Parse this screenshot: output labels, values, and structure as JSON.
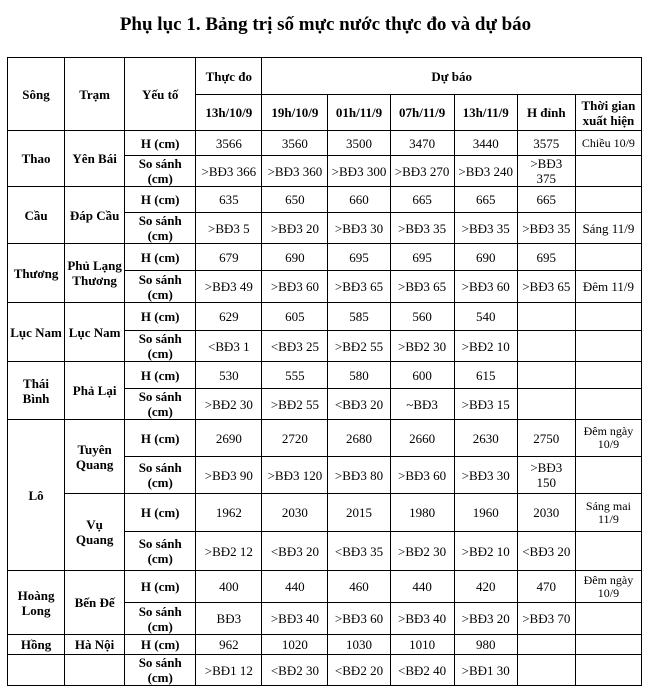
{
  "title": "Phụ lục 1. Bảng trị số mực nước thực đo và dự báo",
  "header": {
    "song": "Sông",
    "tram": "Trạm",
    "yeu_to": "Yếu tố",
    "thuc_do": "Thực đo",
    "du_bao": "Dự báo",
    "times": [
      "13h/10/9",
      "19h/10/9",
      "01h/11/9",
      "07h/11/9",
      "13h/11/9",
      "H đỉnh",
      "Thời gian xuất hiện"
    ]
  },
  "labels": {
    "h": "H (cm)",
    "ss": "So sánh (cm)"
  },
  "rows": [
    {
      "river": "Thao",
      "station": "Yên Bái",
      "h": [
        "3566",
        "3560",
        "3500",
        "3470",
        "3440",
        "3575"
      ],
      "ss": [
        ">BĐ3 366",
        ">BĐ3 360",
        ">BĐ3 300",
        ">BĐ3 270",
        ">BĐ3 240",
        ">BĐ3 375"
      ],
      "time_h": "Chiều 10/9",
      "time_ss": ""
    },
    {
      "river": "Cầu",
      "station": "Đáp Cầu",
      "h": [
        "635",
        "650",
        "660",
        "665",
        "665",
        "665"
      ],
      "ss": [
        ">BĐ3 5",
        ">BĐ3 20",
        ">BĐ3 30",
        ">BĐ3 35",
        ">BĐ3 35",
        ">BĐ3 35"
      ],
      "time_h": "",
      "time_ss": "Sáng 11/9"
    },
    {
      "river": "Thương",
      "station": "Phủ Lạng Thương",
      "h": [
        "679",
        "690",
        "695",
        "695",
        "690",
        "695"
      ],
      "ss": [
        ">BĐ3 49",
        ">BĐ3 60",
        ">BĐ3 65",
        ">BĐ3 65",
        ">BĐ3 60",
        ">BĐ3 65"
      ],
      "time_h": "",
      "time_ss": "Đêm 11/9"
    },
    {
      "river": "Lục Nam",
      "station": "Lục Nam",
      "h": [
        "629",
        "605",
        "585",
        "560",
        "540",
        ""
      ],
      "ss": [
        "<BĐ3 1",
        "<BĐ3 25",
        ">BĐ2 55",
        ">BĐ2 30",
        ">BĐ2 10",
        ""
      ],
      "time_h": "",
      "time_ss": ""
    },
    {
      "river": "Thái Bình",
      "station": "Phả Lại",
      "h": [
        "530",
        "555",
        "580",
        "600",
        "615",
        ""
      ],
      "ss": [
        ">BĐ2 30",
        ">BĐ2 55",
        "<BĐ3 20",
        "~BĐ3",
        ">BĐ3 15",
        ""
      ],
      "time_h": "",
      "time_ss": ""
    },
    {
      "river": "Lô",
      "station": "Tuyên Quang",
      "h": [
        "2690",
        "2720",
        "2680",
        "2660",
        "2630",
        "2750"
      ],
      "ss": [
        ">BĐ3 90",
        ">BĐ3 120",
        ">BĐ3 80",
        ">BĐ3 60",
        ">BĐ3 30",
        ">BĐ3 150"
      ],
      "time_h": "Đêm ngày 10/9",
      "time_ss": ""
    },
    {
      "river": "",
      "station": "Vụ Quang",
      "h": [
        "1962",
        "2030",
        "2015",
        "1980",
        "1960",
        "2030"
      ],
      "ss": [
        ">BĐ2 12",
        "<BĐ3 20",
        "<BĐ3 35",
        ">BĐ2 30",
        ">BĐ2 10",
        "<BĐ3 20"
      ],
      "time_h": "Sáng mai 11/9",
      "time_ss": ""
    },
    {
      "river": "Hoàng Long",
      "station": "Bến Đế",
      "h": [
        "400",
        "440",
        "460",
        "440",
        "420",
        "470"
      ],
      "ss": [
        "BĐ3",
        ">BĐ3 40",
        ">BĐ3 60",
        ">BĐ3 40",
        ">BĐ3 20",
        ">BĐ3 70"
      ],
      "time_h": "Đêm ngày 10/9",
      "time_ss": ""
    },
    {
      "river": "Hồng",
      "station": "Hà Nội",
      "h": [
        "962",
        "1020",
        "1030",
        "1010",
        "980",
        ""
      ],
      "ss": [
        ">BĐ1 12",
        "<BĐ2 30",
        "<BĐ2 20",
        "<BĐ2 40",
        ">BĐ1 30",
        ""
      ],
      "time_h": "",
      "time_ss": ""
    }
  ]
}
